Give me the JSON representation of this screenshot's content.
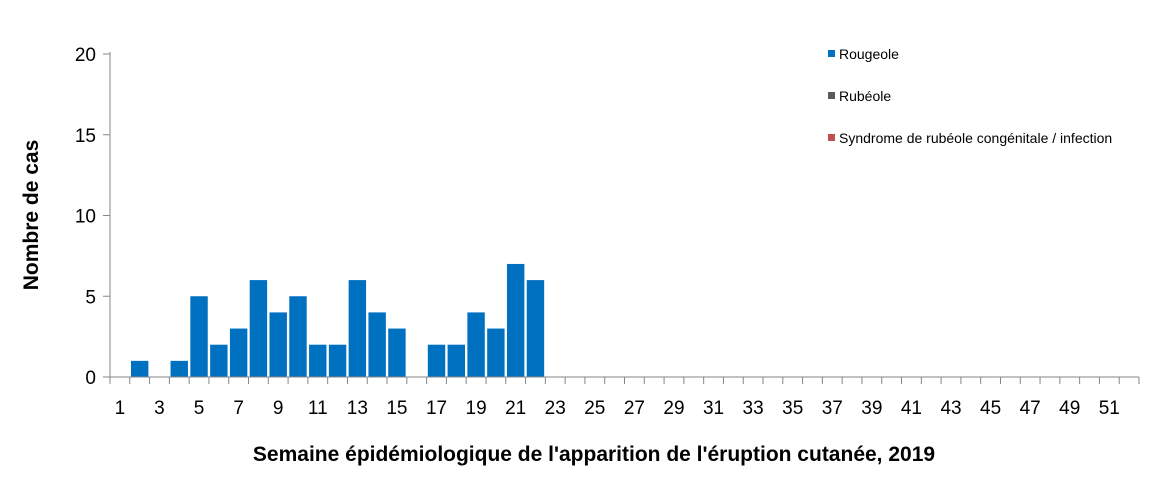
{
  "chart_data": {
    "type": "bar",
    "xlabel": "Semaine épidémiologique de l'apparition de l'éruption cutanée, 2019",
    "ylabel": "Nombre de cas",
    "ylim": [
      0,
      20
    ],
    "yticks": [
      "0",
      "5",
      "10",
      "15",
      "20"
    ],
    "categories": [
      "1",
      "2",
      "3",
      "4",
      "5",
      "6",
      "7",
      "8",
      "9",
      "10",
      "11",
      "12",
      "13",
      "14",
      "15",
      "16",
      "17",
      "18",
      "19",
      "20",
      "21",
      "22",
      "23",
      "24",
      "25",
      "26",
      "27",
      "28",
      "29",
      "30",
      "31",
      "32",
      "33",
      "34",
      "35",
      "36",
      "37",
      "38",
      "39",
      "40",
      "41",
      "42",
      "43",
      "44",
      "45",
      "46",
      "47",
      "48",
      "49",
      "50",
      "51",
      "52"
    ],
    "xtick_labels_shown": [
      "1",
      "3",
      "5",
      "7",
      "9",
      "11",
      "13",
      "15",
      "17",
      "19",
      "21",
      "23",
      "25",
      "27",
      "29",
      "31",
      "33",
      "35",
      "37",
      "39",
      "41",
      "43",
      "45",
      "47",
      "49",
      "51"
    ],
    "series": [
      {
        "name": "Rougeole",
        "color": "#0070C0",
        "values": [
          0,
          1,
          0,
          1,
          5,
          2,
          3,
          6,
          4,
          5,
          2,
          2,
          6,
          4,
          3,
          0,
          2,
          2,
          4,
          3,
          7,
          6,
          0,
          0,
          0,
          0,
          0,
          0,
          0,
          0,
          0,
          0,
          0,
          0,
          0,
          0,
          0,
          0,
          0,
          0,
          0,
          0,
          0,
          0,
          0,
          0,
          0,
          0,
          0,
          0,
          0,
          0
        ]
      },
      {
        "name": "Rubéole",
        "color": "#5B5B5B",
        "values": [
          0,
          0,
          0,
          0,
          0,
          0,
          0,
          0,
          0,
          0,
          0,
          0,
          0,
          0,
          0,
          0,
          0,
          0,
          0,
          0,
          0,
          0,
          0,
          0,
          0,
          0,
          0,
          0,
          0,
          0,
          0,
          0,
          0,
          0,
          0,
          0,
          0,
          0,
          0,
          0,
          0,
          0,
          0,
          0,
          0,
          0,
          0,
          0,
          0,
          0,
          0,
          0
        ]
      },
      {
        "name": "Syndrome de rubéole congénitale / infection",
        "color": "#C0504D",
        "values": [
          0,
          0,
          0,
          0,
          0,
          0,
          0,
          0,
          0,
          0,
          0,
          0,
          0,
          0,
          0,
          0,
          0,
          0,
          0,
          0,
          0,
          0,
          0,
          0,
          0,
          0,
          0,
          0,
          0,
          0,
          0,
          0,
          0,
          0,
          0,
          0,
          0,
          0,
          0,
          0,
          0,
          0,
          0,
          0,
          0,
          0,
          0,
          0,
          0,
          0,
          0,
          0
        ]
      }
    ],
    "stacked": true,
    "grid": false,
    "legend_position": "top-right"
  }
}
